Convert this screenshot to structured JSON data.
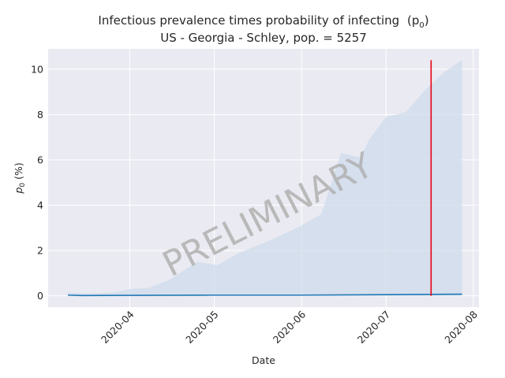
{
  "chart_data": {
    "type": "line",
    "title": "Infectious prevalence times probability of infecting",
    "title_symbol": "(p",
    "title_symbol_sub": "0",
    "title_symbol_close": ")",
    "subtitle": "US - Georgia - Schley, pop. = 5257",
    "xlabel": "Date",
    "ylabel": "p",
    "ylabel_sub": "0",
    "ylabel_unit": " (%)",
    "watermark": "PRELIMINARY",
    "x_axis": {
      "type": "date",
      "range": [
        "2020-03-03",
        "2020-08-03"
      ],
      "ticks": [
        "2020-04-01",
        "2020-05-01",
        "2020-06-01",
        "2020-07-01",
        "2020-08-01"
      ],
      "tick_labels": [
        "2020-04",
        "2020-05",
        "2020-06",
        "2020-07",
        "2020-08"
      ]
    },
    "y_axis": {
      "range": [
        -0.5,
        10.9
      ],
      "ticks": [
        0,
        2,
        4,
        6,
        8,
        10
      ],
      "tick_labels": [
        "0",
        "2",
        "4",
        "6",
        "8",
        "10"
      ]
    },
    "grid": true,
    "series": [
      {
        "role": "line",
        "color": "#1f77b4",
        "points": [
          [
            "2020-03-10",
            0.03
          ],
          [
            "2020-03-15",
            0.01
          ],
          [
            "2020-04-01",
            0.02
          ],
          [
            "2020-05-01",
            0.03
          ],
          [
            "2020-06-01",
            0.03
          ],
          [
            "2020-07-01",
            0.05
          ],
          [
            "2020-07-28",
            0.07
          ]
        ]
      },
      {
        "role": "band",
        "color": "#c9d9ea",
        "lower": [
          [
            "2020-03-10",
            0.0
          ],
          [
            "2020-07-28",
            0.0
          ]
        ],
        "upper": [
          [
            "2020-03-10",
            0.15
          ],
          [
            "2020-03-17",
            0.1
          ],
          [
            "2020-03-27",
            0.15
          ],
          [
            "2020-04-01",
            0.3
          ],
          [
            "2020-04-08",
            0.35
          ],
          [
            "2020-04-15",
            0.7
          ],
          [
            "2020-04-20",
            1.1
          ],
          [
            "2020-04-25",
            1.5
          ],
          [
            "2020-05-02",
            1.35
          ],
          [
            "2020-05-10",
            1.9
          ],
          [
            "2020-05-20",
            2.4
          ],
          [
            "2020-05-27",
            2.8
          ],
          [
            "2020-06-01",
            3.1
          ],
          [
            "2020-06-08",
            3.6
          ],
          [
            "2020-06-15",
            6.3
          ],
          [
            "2020-06-22",
            6.1
          ],
          [
            "2020-06-25",
            6.9
          ],
          [
            "2020-07-01",
            7.9
          ],
          [
            "2020-07-08",
            8.1
          ],
          [
            "2020-07-15",
            9.1
          ],
          [
            "2020-07-22",
            9.9
          ],
          [
            "2020-07-28",
            10.4
          ]
        ]
      }
    ],
    "marker": {
      "date": "2020-07-17",
      "y_from": 0,
      "y_to": 10.4,
      "color": "#e6000f"
    },
    "colors": {
      "plot_background": "#eaeaf2",
      "grid": "#ffffff",
      "text": "#262626"
    }
  }
}
